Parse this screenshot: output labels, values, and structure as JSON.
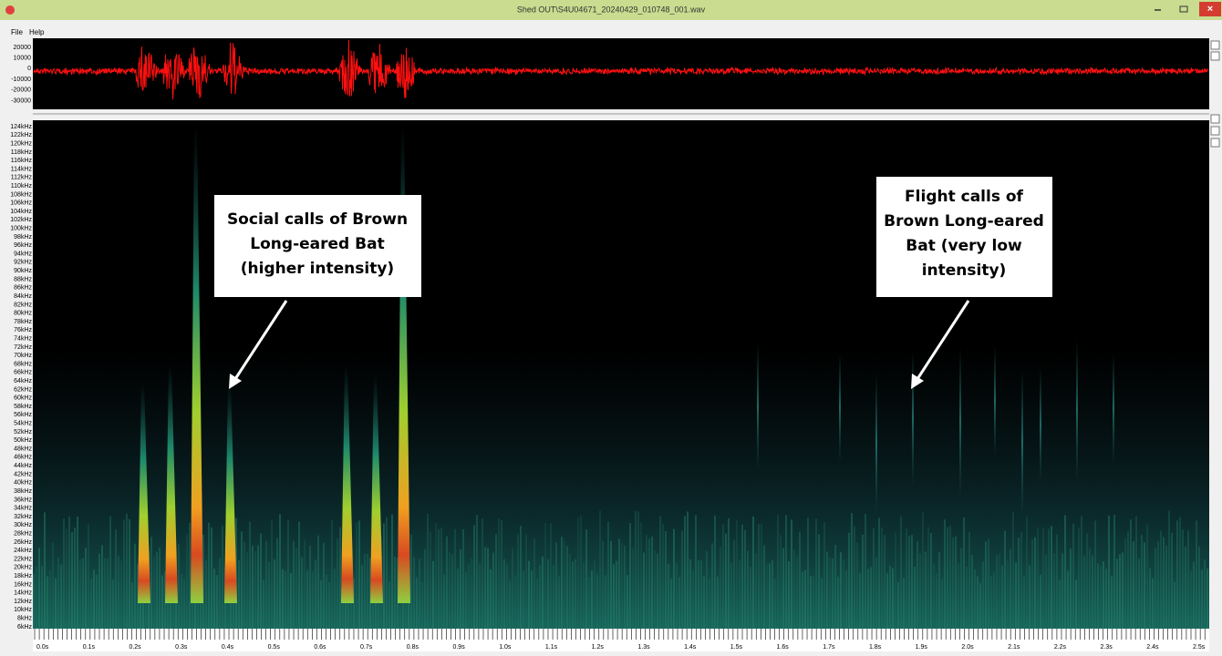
{
  "window": {
    "title": "Shed OUT\\S4U04671_20240429_010748_001.wav"
  },
  "menu": [
    "File",
    "Help"
  ],
  "waveform": {
    "amplitude_labels": [
      "20000",
      "10000",
      "0",
      "-10000",
      "-20000",
      "-30000"
    ]
  },
  "spectrogram": {
    "frequency_labels": [
      "124kHz",
      "122kHz",
      "120kHz",
      "118kHz",
      "116kHz",
      "114kHz",
      "112kHz",
      "110kHz",
      "108kHz",
      "106kHz",
      "104kHz",
      "102kHz",
      "100kHz",
      "98kHz",
      "96kHz",
      "94kHz",
      "92kHz",
      "90kHz",
      "88kHz",
      "86kHz",
      "84kHz",
      "82kHz",
      "80kHz",
      "78kHz",
      "76kHz",
      "74kHz",
      "72kHz",
      "70kHz",
      "68kHz",
      "66kHz",
      "64kHz",
      "62kHz",
      "60kHz",
      "58kHz",
      "56kHz",
      "54kHz",
      "52kHz",
      "50kHz",
      "48kHz",
      "46kHz",
      "44kHz",
      "42kHz",
      "40kHz",
      "38kHz",
      "36kHz",
      "34kHz",
      "32kHz",
      "30kHz",
      "28kHz",
      "26kHz",
      "24kHz",
      "22kHz",
      "20kHz",
      "18kHz",
      "16kHz",
      "14kHz",
      "12kHz",
      "10kHz",
      "8kHz",
      "6kHz"
    ],
    "time_labels": [
      "0.0s",
      "0.1s",
      "0.2s",
      "0.3s",
      "0.4s",
      "0.5s",
      "0.6s",
      "0.7s",
      "0.8s",
      "0.9s",
      "1.0s",
      "1.1s",
      "1.2s",
      "1.3s",
      "1.4s",
      "1.5s",
      "1.6s",
      "1.7s",
      "1.8s",
      "1.9s",
      "2.0s",
      "2.1s",
      "2.2s",
      "2.3s",
      "2.4s",
      "2.5s"
    ]
  },
  "annotations": [
    {
      "lines": [
        "Social calls of Brown",
        "Long-eared Bat",
        "(higher intensity)"
      ]
    },
    {
      "lines": [
        "Flight calls of",
        "Brown Long-eared",
        "Bat (very low",
        "intensity)"
      ]
    }
  ]
}
